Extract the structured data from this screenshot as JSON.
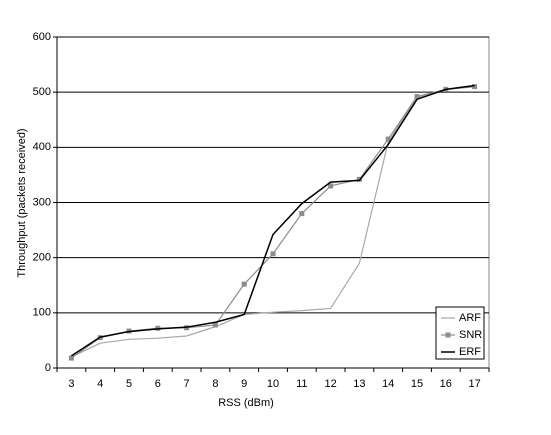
{
  "chart_data": {
    "type": "line",
    "x_label": "RSS (dBm)",
    "y_label": "Throughput (packets received)",
    "categories": [
      3,
      4,
      5,
      6,
      7,
      8,
      9,
      10,
      11,
      12,
      13,
      14,
      15,
      16,
      17
    ],
    "series": [
      {
        "name": "ARF",
        "color": "#a8a8a8",
        "marker": "none",
        "values": [
          20,
          45,
          52,
          54,
          58,
          75,
          97,
          101,
          104,
          108,
          190,
          410,
          490,
          505,
          510
        ]
      },
      {
        "name": "SNR",
        "color": "#8c8c8c",
        "marker": "square",
        "values": [
          18,
          55,
          67,
          72,
          73,
          78,
          152,
          207,
          280,
          330,
          342,
          415,
          492,
          505,
          510
        ]
      },
      {
        "name": "ERF",
        "color": "#000000",
        "marker": "none",
        "values": [
          22,
          56,
          66,
          71,
          74,
          83,
          97,
          242,
          298,
          337,
          340,
          405,
          487,
          505,
          512
        ]
      }
    ],
    "ylim": [
      0,
      600
    ],
    "yticks": [
      0,
      100,
      200,
      300,
      400,
      500,
      600
    ],
    "grid": true,
    "legend": "lower right"
  }
}
